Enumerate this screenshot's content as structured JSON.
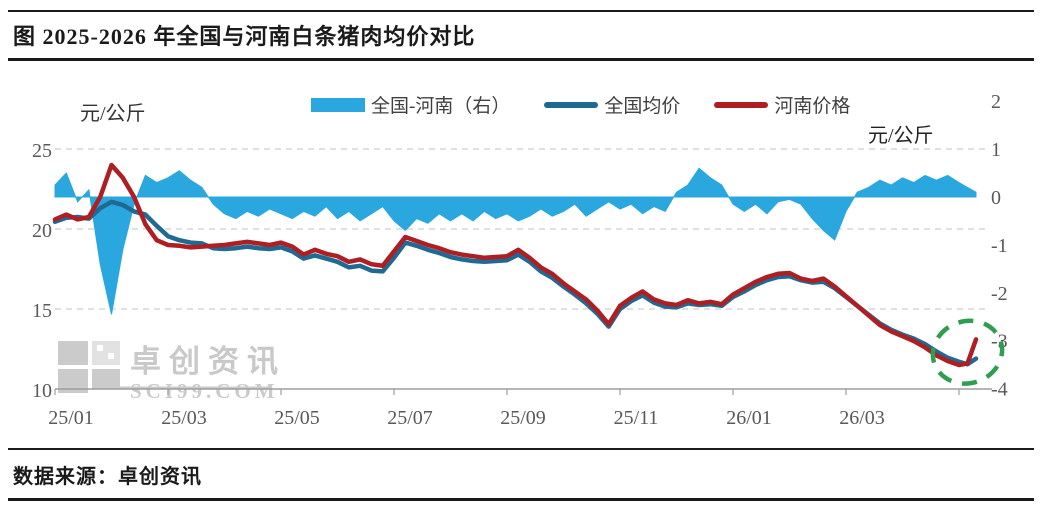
{
  "meta": {
    "title": "图 2025-2026 年全国与河南白条猪肉均价对比",
    "source_line": "数据来源：卓创资讯"
  },
  "watermark": {
    "name": "卓创资讯",
    "domain": "SCI99.COM"
  },
  "chart_data": {
    "type": "line",
    "title": "2025-2026 年全国与河南白条猪肉均价对比",
    "left_axis": {
      "unit": "元/公斤",
      "ticks": [
        25,
        20,
        15,
        10
      ],
      "range": [
        10,
        25
      ]
    },
    "right_axis": {
      "unit": "元/公斤",
      "ticks": [
        2,
        1,
        0,
        -1,
        -2,
        -3,
        -4
      ],
      "range": [
        -4,
        2
      ]
    },
    "x_ticks": [
      "25/01",
      "25/03",
      "25/05",
      "25/07",
      "25/09",
      "25/11",
      "26/01",
      "26/03"
    ],
    "grid": "dashed-horizontal",
    "legend_position": "top",
    "legend": [
      {
        "label": "全国-河南（右）",
        "type": "area",
        "color": "#2aa7df"
      },
      {
        "label": "全国均价",
        "type": "line",
        "color": "#1f6a93"
      },
      {
        "label": "河南价格",
        "type": "line",
        "color": "#ae1f23"
      }
    ],
    "series": {
      "x_months_from_2501": [
        0,
        0.2,
        0.4,
        0.6,
        0.8,
        1,
        1.2,
        1.4,
        1.6,
        1.8,
        2,
        2.2,
        2.4,
        2.6,
        2.8,
        3,
        3.2,
        3.4,
        3.6,
        3.8,
        4,
        4.2,
        4.4,
        4.6,
        4.8,
        5,
        5.2,
        5.4,
        5.6,
        5.8,
        6,
        6.2,
        6.4,
        6.6,
        6.8,
        7,
        7.2,
        7.4,
        7.6,
        7.8,
        8,
        8.2,
        8.4,
        8.6,
        8.8,
        9,
        9.2,
        9.4,
        9.6,
        9.8,
        10,
        10.2,
        10.4,
        10.6,
        10.8,
        11,
        11.2,
        11.4,
        11.6,
        11.8,
        12,
        12.2,
        12.4,
        12.6,
        12.8,
        13,
        13.2,
        13.4,
        13.6,
        13.8,
        14,
        14.2,
        14.4,
        14.6,
        14.8,
        15,
        15.2,
        15.4,
        15.6,
        15.8,
        16,
        16.15,
        16.3
      ],
      "henan": [
        20.6,
        20.9,
        20.6,
        20.75,
        22,
        24,
        23.2,
        22,
        20.3,
        19.3,
        19,
        18.95,
        18.85,
        18.9,
        18.95,
        19,
        19.1,
        19.2,
        19.1,
        19,
        19.15,
        18.9,
        18.4,
        18.7,
        18.45,
        18.3,
        17.95,
        18.1,
        17.8,
        17.7,
        18.6,
        19.5,
        19.25,
        19,
        18.8,
        18.55,
        18.4,
        18.3,
        18.2,
        18.25,
        18.3,
        18.7,
        18.2,
        17.6,
        17.2,
        16.6,
        16.1,
        15.6,
        14.9,
        14.05,
        15.2,
        15.7,
        16.1,
        15.6,
        15.35,
        15.25,
        15.55,
        15.35,
        15.45,
        15.3,
        15.9,
        16.3,
        16.7,
        17,
        17.2,
        17.25,
        16.9,
        16.75,
        16.9,
        16.4,
        15.8,
        15.2,
        14.6,
        14,
        13.6,
        13.3,
        13,
        12.6,
        12.1,
        11.75,
        11.5,
        11.6,
        13.1
      ],
      "national": [
        20.45,
        20.7,
        20.75,
        20.65,
        21.3,
        21.7,
        21.5,
        21.1,
        20.9,
        20.2,
        19.55,
        19.3,
        19.15,
        19.1,
        18.8,
        18.75,
        18.8,
        18.9,
        18.8,
        18.75,
        18.85,
        18.6,
        18.15,
        18.35,
        18.15,
        17.95,
        17.6,
        17.7,
        17.4,
        17.35,
        18.2,
        19.15,
        18.95,
        18.7,
        18.5,
        18.25,
        18.1,
        18,
        17.95,
        18,
        18.05,
        18.4,
        17.95,
        17.35,
        16.95,
        16.4,
        15.9,
        15.35,
        14.7,
        13.9,
        15,
        15.5,
        15.85,
        15.4,
        15.15,
        15.1,
        15.35,
        15.25,
        15.3,
        15.2,
        15.75,
        16.1,
        16.5,
        16.8,
        17,
        17.05,
        16.8,
        16.65,
        16.7,
        16.3,
        15.75,
        15.2,
        14.65,
        14.1,
        13.7,
        13.4,
        13.15,
        12.8,
        12.35,
        11.95,
        11.7,
        11.55,
        11.9
      ],
      "spread_national_minus_henan": [
        0.25,
        0.5,
        -0.1,
        0.15,
        -1.4,
        -2.45,
        -1.1,
        -0.15,
        0.45,
        0.3,
        0.4,
        0.55,
        0.35,
        0.2,
        -0.15,
        -0.35,
        -0.45,
        -0.3,
        -0.4,
        -0.25,
        -0.35,
        -0.45,
        -0.3,
        -0.4,
        -0.2,
        -0.45,
        -0.3,
        -0.5,
        -0.35,
        -0.2,
        -0.5,
        -0.7,
        -0.45,
        -0.55,
        -0.35,
        -0.5,
        -0.35,
        -0.5,
        -0.3,
        -0.45,
        -0.35,
        -0.5,
        -0.4,
        -0.25,
        -0.4,
        -0.3,
        -0.15,
        -0.4,
        -0.25,
        -0.1,
        -0.25,
        -0.15,
        -0.35,
        -0.2,
        -0.3,
        0.1,
        0.25,
        0.6,
        0.4,
        0.25,
        -0.15,
        -0.3,
        -0.15,
        -0.35,
        -0.1,
        -0.05,
        -0.15,
        -0.45,
        -0.7,
        -0.9,
        -0.3,
        0.1,
        0.2,
        0.35,
        0.25,
        0.4,
        0.3,
        0.45,
        0.35,
        0.45,
        0.3,
        0.2,
        0.1
      ]
    },
    "annotation": {
      "shape": "dashed-ellipse",
      "color": "#2f9e50",
      "x_month": 16.15,
      "value": 12.3
    },
    "styles": {
      "grid_color": "#cfcfcf",
      "axis_color": "#9e9e9e",
      "tick_label_color": "#595959",
      "watermark_color": "#c9c9c9"
    }
  }
}
